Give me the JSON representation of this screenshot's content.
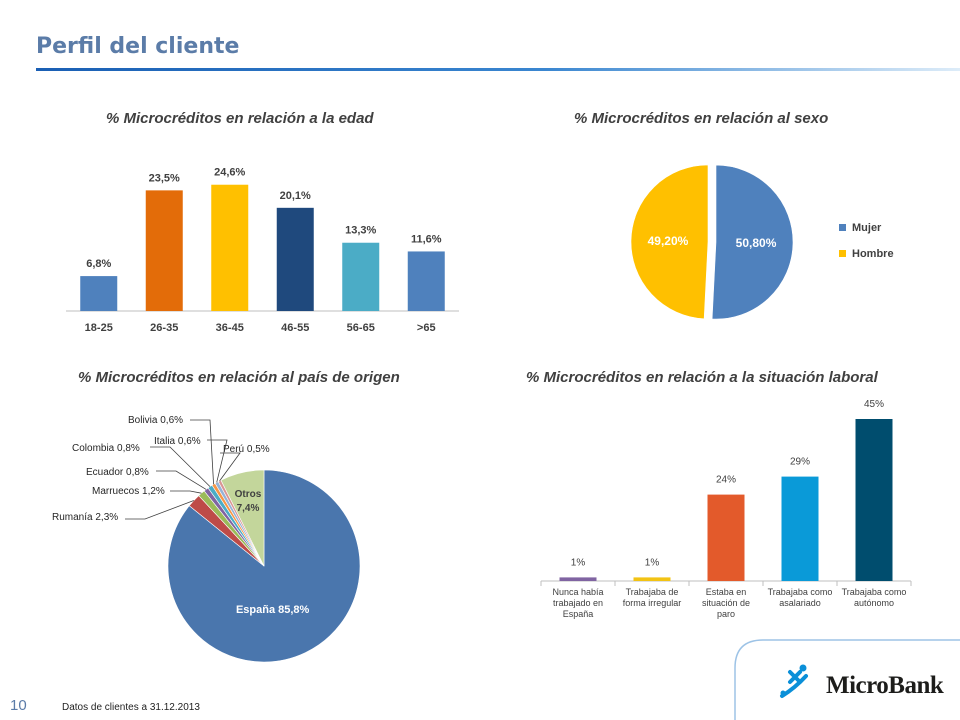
{
  "header": {
    "title": "Perfil del cliente"
  },
  "footer": {
    "note": "Datos de clientes a 31.12.2013",
    "page_number": "10"
  },
  "brand": {
    "name": "MicroBank",
    "accent": "#0a8fd8",
    "dark": "#1d1d1b"
  },
  "chart_data": [
    {
      "type": "bar",
      "title": "% Microcréditos en relación a la edad",
      "categories": [
        "18-25",
        "26-35",
        "36-45",
        "46-55",
        "56-65",
        ">65"
      ],
      "values": [
        6.8,
        23.5,
        24.6,
        20.1,
        13.3,
        11.6
      ],
      "labels": [
        "6,8%",
        "23,5%",
        "24,6%",
        "20,1%",
        "13,3%",
        "11,6%"
      ],
      "colors": [
        "#4f81bd",
        "#e36c09",
        "#ffc000",
        "#1f497d",
        "#4bacc6",
        "#4f81bd"
      ],
      "ylim": [
        0,
        30
      ]
    },
    {
      "type": "pie",
      "title": "% Microcréditos en relación al sexo",
      "slices": [
        {
          "name": "Mujer",
          "value": 50.8,
          "label": "50,80%",
          "color": "#4f81bd"
        },
        {
          "name": "Hombre",
          "value": 49.2,
          "label": "49,20%",
          "color": "#ffc000"
        }
      ],
      "legend": "right"
    },
    {
      "type": "pie",
      "title": "% Microcréditos en relación al país de origen",
      "slices": [
        {
          "name": "España",
          "value": 85.8,
          "label": "España 85,8%",
          "color": "#4a76ad"
        },
        {
          "name": "Rumanía",
          "value": 2.3,
          "label": "Rumanía 2,3%",
          "color": "#be4b48"
        },
        {
          "name": "Marruecos",
          "value": 1.2,
          "label": "Marruecos 1,2%",
          "color": "#9bbb59"
        },
        {
          "name": "Ecuador",
          "value": 0.8,
          "label": "Ecuador 0,8%",
          "color": "#8064a2"
        },
        {
          "name": "Colombia",
          "value": 0.8,
          "label": "Colombia 0,8%",
          "color": "#4bacc6"
        },
        {
          "name": "Bolivia",
          "value": 0.6,
          "label": "Bolivia 0,6%",
          "color": "#f79646"
        },
        {
          "name": "Italia",
          "value": 0.6,
          "label": "Italia 0,6%",
          "color": "#95b3d7"
        },
        {
          "name": "Perú",
          "value": 0.5,
          "label": "Perú 0,5%",
          "color": "#d99694"
        },
        {
          "name": "Otros",
          "value": 7.4,
          "label": "Otros 7,4%",
          "color": "#c3d69b"
        }
      ]
    },
    {
      "type": "bar",
      "title": "% Microcréditos en relación a la situación laboral",
      "categories": [
        "Nunca había trabajado en España",
        "Trabajaba de forma irregular",
        "Estaba en situación de paro",
        "Trabajaba como asalariado",
        "Trabajaba como autónomo"
      ],
      "values": [
        1,
        1,
        24,
        29,
        45
      ],
      "labels": [
        "1%",
        "1%",
        "24%",
        "29%",
        "45%"
      ],
      "colors": [
        "#8064a2",
        "#f2c314",
        "#e35a2b",
        "#0a9ad8",
        "#004d6e"
      ],
      "ylim": [
        0,
        45
      ]
    }
  ]
}
